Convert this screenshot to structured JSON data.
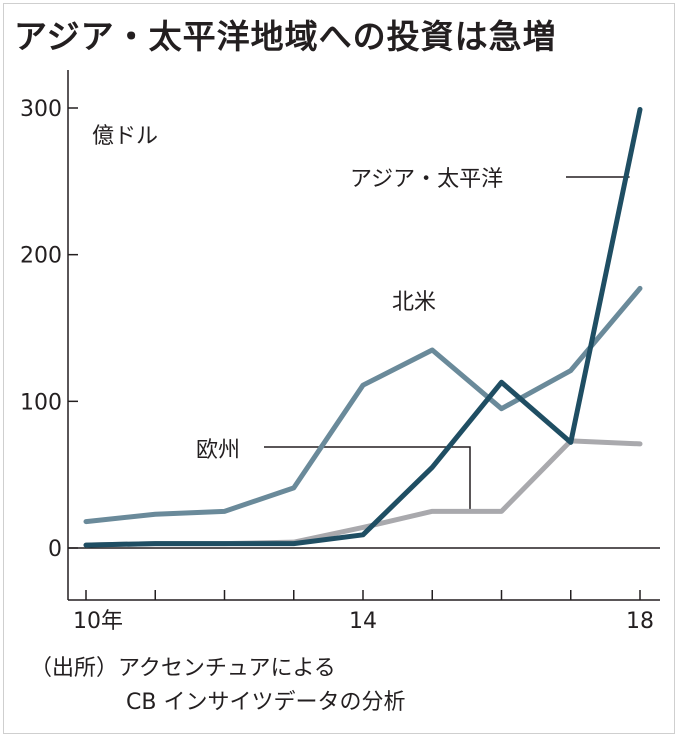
{
  "title": "アジア・太平洋地域への投資は急増",
  "chart_data": {
    "type": "line",
    "unit_label": "億ドル",
    "x": [
      10,
      11,
      12,
      13,
      14,
      15,
      16,
      17,
      18
    ],
    "x_tick_labels": [
      "10年",
      "14",
      "18"
    ],
    "x_tick_values": [
      10,
      14,
      18
    ],
    "y_ticks": [
      0,
      100,
      200,
      300
    ],
    "ylim": [
      0,
      300
    ],
    "xlim": [
      10,
      18
    ],
    "grid": false,
    "series": [
      {
        "name": "アジア・太平洋",
        "color": "#1f4e63",
        "values": [
          2,
          3,
          3,
          3,
          9,
          55,
          113,
          72,
          299
        ]
      },
      {
        "name": "北米",
        "color": "#6a8a9a",
        "values": [
          18,
          23,
          25,
          41,
          111,
          135,
          95,
          121,
          177
        ]
      },
      {
        "name": "欧州",
        "color": "#a9a9ad",
        "values": [
          2,
          3,
          3,
          4,
          14,
          25,
          25,
          73,
          71
        ]
      }
    ]
  },
  "source": {
    "line1": "（出所）アクセンチュアによる",
    "line2": "CB インサイツデータの分析"
  }
}
